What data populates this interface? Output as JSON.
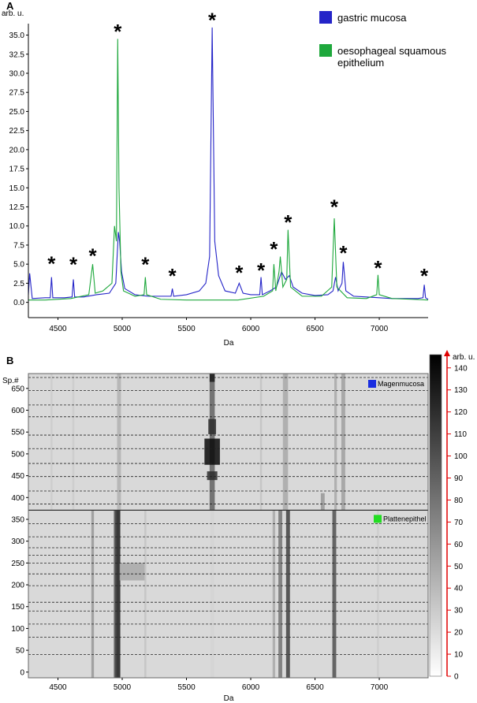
{
  "chart_data": [
    {
      "type": "line",
      "panel_label": "A",
      "xlabel": "Da",
      "ylabel": "arb. u.",
      "xlim": [
        4270,
        7380
      ],
      "xticks": [
        4500,
        5000,
        5500,
        6000,
        6500,
        7000
      ],
      "ylim": [
        -2,
        36.5
      ],
      "yticks": [
        {
          "value": 0,
          "label": "0.0"
        },
        {
          "value": 2.5,
          "label": "2.5"
        },
        {
          "value": 5,
          "label": "5.0"
        },
        {
          "value": 7.5,
          "label": "7.5"
        },
        {
          "value": 10,
          "label": "10.0"
        },
        {
          "value": 12.5,
          "label": "12.5"
        },
        {
          "value": 15,
          "label": "15.0"
        },
        {
          "value": 17.5,
          "label": "17.5"
        },
        {
          "value": 20,
          "label": "20.0"
        },
        {
          "value": 22.5,
          "label": "22.5"
        },
        {
          "value": 25,
          "label": "25.0"
        },
        {
          "value": 27.5,
          "label": "27.5"
        },
        {
          "value": 30,
          "label": "30.0"
        },
        {
          "value": 32.5,
          "label": "32.5"
        },
        {
          "value": 35,
          "label": "35.0"
        }
      ],
      "legend": "upper right",
      "series": [
        {
          "name": "gastric mucosa",
          "color": "#2424c8",
          "x": [
            4270,
            4280,
            4300,
            4400,
            4440,
            4450,
            4460,
            4550,
            4610,
            4620,
            4630,
            4700,
            4800,
            4900,
            4950,
            4970,
            4980,
            4995,
            5020,
            5100,
            5200,
            5300,
            5380,
            5390,
            5400,
            5500,
            5600,
            5650,
            5680,
            5700,
            5720,
            5750,
            5800,
            5880,
            5910,
            5940,
            6000,
            6070,
            6080,
            6090,
            6150,
            6200,
            6240,
            6270,
            6300,
            6330,
            6400,
            6500,
            6600,
            6640,
            6660,
            6680,
            6710,
            6720,
            6740,
            6800,
            6900,
            7000,
            7100,
            7200,
            7300,
            7340,
            7350,
            7360,
            7380
          ],
          "values": [
            1.0,
            3.8,
            0.5,
            0.6,
            0.6,
            3.3,
            0.6,
            0.6,
            0.7,
            3.0,
            0.7,
            0.7,
            1.0,
            1.2,
            2.5,
            9.2,
            8.0,
            4.0,
            1.8,
            1.0,
            0.8,
            0.8,
            0.8,
            1.8,
            0.8,
            1.0,
            1.5,
            2.5,
            6.0,
            36.0,
            8.0,
            3.5,
            1.5,
            1.2,
            2.5,
            1.2,
            1.0,
            1.0,
            3.3,
            1.0,
            1.5,
            2.0,
            4.0,
            3.0,
            3.5,
            2.0,
            1.2,
            0.9,
            1.0,
            1.5,
            3.3,
            1.5,
            2.5,
            5.3,
            1.5,
            0.8,
            0.7,
            0.6,
            0.5,
            0.5,
            0.5,
            0.6,
            2.3,
            0.6,
            0.4
          ]
        },
        {
          "name": "oesophageal squamous epithelium",
          "color": "#1ea83c",
          "x": [
            4270,
            4400,
            4600,
            4740,
            4770,
            4790,
            4850,
            4920,
            4940,
            4955,
            4965,
            4975,
            4990,
            5010,
            5100,
            5170,
            5180,
            5190,
            5300,
            5500,
            5700,
            5900,
            6100,
            6170,
            6180,
            6195,
            6220,
            6230,
            6250,
            6280,
            6290,
            6310,
            6400,
            6550,
            6630,
            6650,
            6670,
            6750,
            6900,
            6980,
            6990,
            7000,
            7100,
            7250,
            7380
          ],
          "values": [
            0.3,
            0.3,
            0.5,
            1.0,
            5.0,
            1.2,
            1.5,
            2.5,
            10.0,
            8.0,
            34.5,
            15.0,
            4.0,
            1.5,
            0.8,
            1.0,
            3.3,
            1.0,
            0.4,
            0.3,
            0.3,
            0.3,
            0.8,
            1.5,
            5.0,
            1.5,
            4.0,
            6.0,
            2.0,
            3.0,
            9.5,
            2.0,
            0.8,
            0.8,
            2.0,
            11.0,
            2.0,
            0.6,
            0.5,
            1.0,
            3.6,
            1.0,
            0.5,
            0.4,
            0.3
          ]
        }
      ],
      "annotations": [
        {
          "text": "*",
          "x": 4450,
          "y": 5.6,
          "color": "#2424c8"
        },
        {
          "text": "*",
          "x": 4620,
          "y": 5.5,
          "color": "#2424c8"
        },
        {
          "text": "*",
          "x": 5390,
          "y": 4.0,
          "color": "#2424c8"
        },
        {
          "text": "*",
          "x": 5700,
          "y": 37.5,
          "color": "#2424c8"
        },
        {
          "text": "*",
          "x": 5910,
          "y": 4.4,
          "color": "#2424c8"
        },
        {
          "text": "*",
          "x": 6080,
          "y": 4.7,
          "color": "#2424c8"
        },
        {
          "text": "*",
          "x": 6720,
          "y": 7.0,
          "color": "#2424c8"
        },
        {
          "text": "*",
          "x": 7350,
          "y": 4.0,
          "color": "#2424c8"
        },
        {
          "text": "*",
          "x": 4770,
          "y": 6.6,
          "color": "#1ea83c"
        },
        {
          "text": "*",
          "x": 4965,
          "y": 36.0,
          "color": "#1ea83c"
        },
        {
          "text": "*",
          "x": 5180,
          "y": 5.5,
          "color": "#1ea83c"
        },
        {
          "text": "*",
          "x": 6180,
          "y": 7.5,
          "color": "#1ea83c"
        },
        {
          "text": "*",
          "x": 6290,
          "y": 11.0,
          "color": "#1ea83c"
        },
        {
          "text": "*",
          "x": 6650,
          "y": 13.0,
          "color": "#1ea83c"
        },
        {
          "text": "*",
          "x": 6990,
          "y": 5.0,
          "color": "#1ea83c"
        }
      ]
    },
    {
      "type": "heatmap",
      "panel_label": "B",
      "xlabel": "Da",
      "ylabel": "Sp.#",
      "xlim": [
        4270,
        7380
      ],
      "xticks": [
        4500,
        5000,
        5500,
        6000,
        6500,
        7000
      ],
      "ylim": [
        -13,
        684
      ],
      "yticks": [
        0,
        50,
        100,
        150,
        200,
        250,
        300,
        350,
        400,
        450,
        500,
        550,
        600,
        650
      ],
      "background_value": 22,
      "bands": [
        {
          "x": 5700,
          "width": 40,
          "spectra": [
            371,
            684
          ],
          "value": 90
        },
        {
          "x": 5700,
          "width": 120,
          "spectra": [
            475,
            535
          ],
          "value": 140
        },
        {
          "x": 5700,
          "width": 80,
          "spectra": [
            440,
            460
          ],
          "value": 120
        },
        {
          "x": 5700,
          "width": 60,
          "spectra": [
            545,
            580
          ],
          "value": 120
        },
        {
          "x": 5700,
          "width": 40,
          "spectra": [
            665,
            684
          ],
          "value": 130
        },
        {
          "x": 4975,
          "width": 30,
          "spectra": [
            371,
            684
          ],
          "value": 45
        },
        {
          "x": 6270,
          "width": 40,
          "spectra": [
            371,
            684
          ],
          "value": 50
        },
        {
          "x": 6720,
          "width": 30,
          "spectra": [
            371,
            684
          ],
          "value": 55
        },
        {
          "x": 6660,
          "width": 20,
          "spectra": [
            371,
            684
          ],
          "value": 50
        },
        {
          "x": 4450,
          "width": 15,
          "spectra": [
            371,
            684
          ],
          "value": 30
        },
        {
          "x": 4620,
          "width": 15,
          "spectra": [
            371,
            684
          ],
          "value": 30
        },
        {
          "x": 6080,
          "width": 15,
          "spectra": [
            371,
            684
          ],
          "value": 35
        },
        {
          "x": 6560,
          "width": 30,
          "spectra": [
            371,
            410
          ],
          "value": 60
        },
        {
          "x": 4965,
          "width": 40,
          "spectra": [
            -13,
            371
          ],
          "value": 130
        },
        {
          "x": 4945,
          "width": 20,
          "spectra": [
            -13,
            371
          ],
          "value": 100
        },
        {
          "x": 5080,
          "width": 200,
          "spectra": [
            210,
            250
          ],
          "value": 50
        },
        {
          "x": 4770,
          "width": 20,
          "spectra": [
            -13,
            371
          ],
          "value": 60
        },
        {
          "x": 5180,
          "width": 15,
          "spectra": [
            -13,
            371
          ],
          "value": 35
        },
        {
          "x": 6230,
          "width": 30,
          "spectra": [
            -13,
            371
          ],
          "value": 80
        },
        {
          "x": 6290,
          "width": 30,
          "spectra": [
            -13,
            371
          ],
          "value": 110
        },
        {
          "x": 6180,
          "width": 20,
          "spectra": [
            -13,
            371
          ],
          "value": 50
        },
        {
          "x": 6650,
          "width": 30,
          "spectra": [
            -13,
            371
          ],
          "value": 100
        },
        {
          "x": 6990,
          "width": 15,
          "spectra": [
            -13,
            371
          ],
          "value": 30
        },
        {
          "x": 5700,
          "width": 30,
          "spectra": [
            -13,
            371
          ],
          "value": 25
        }
      ],
      "group_boundaries": [
        675,
        645,
        612,
        585,
        543,
        512,
        478,
        448,
        415,
        385,
        340,
        310,
        285,
        268,
        250,
        225,
        198,
        160,
        140,
        110,
        80,
        40
      ],
      "class_boundary": 371,
      "classes": [
        {
          "name": "Magenmucosa",
          "color": "#1a2ee0"
        },
        {
          "name": "Plattenepithel",
          "color": "#22dd22"
        }
      ],
      "colorbar": {
        "label": "arb. u.",
        "clim": [
          0,
          146
        ],
        "ticks": [
          0,
          10,
          20,
          30,
          40,
          50,
          60,
          70,
          80,
          90,
          100,
          110,
          120,
          130,
          140
        ],
        "axis_color": "#e00000"
      }
    }
  ]
}
